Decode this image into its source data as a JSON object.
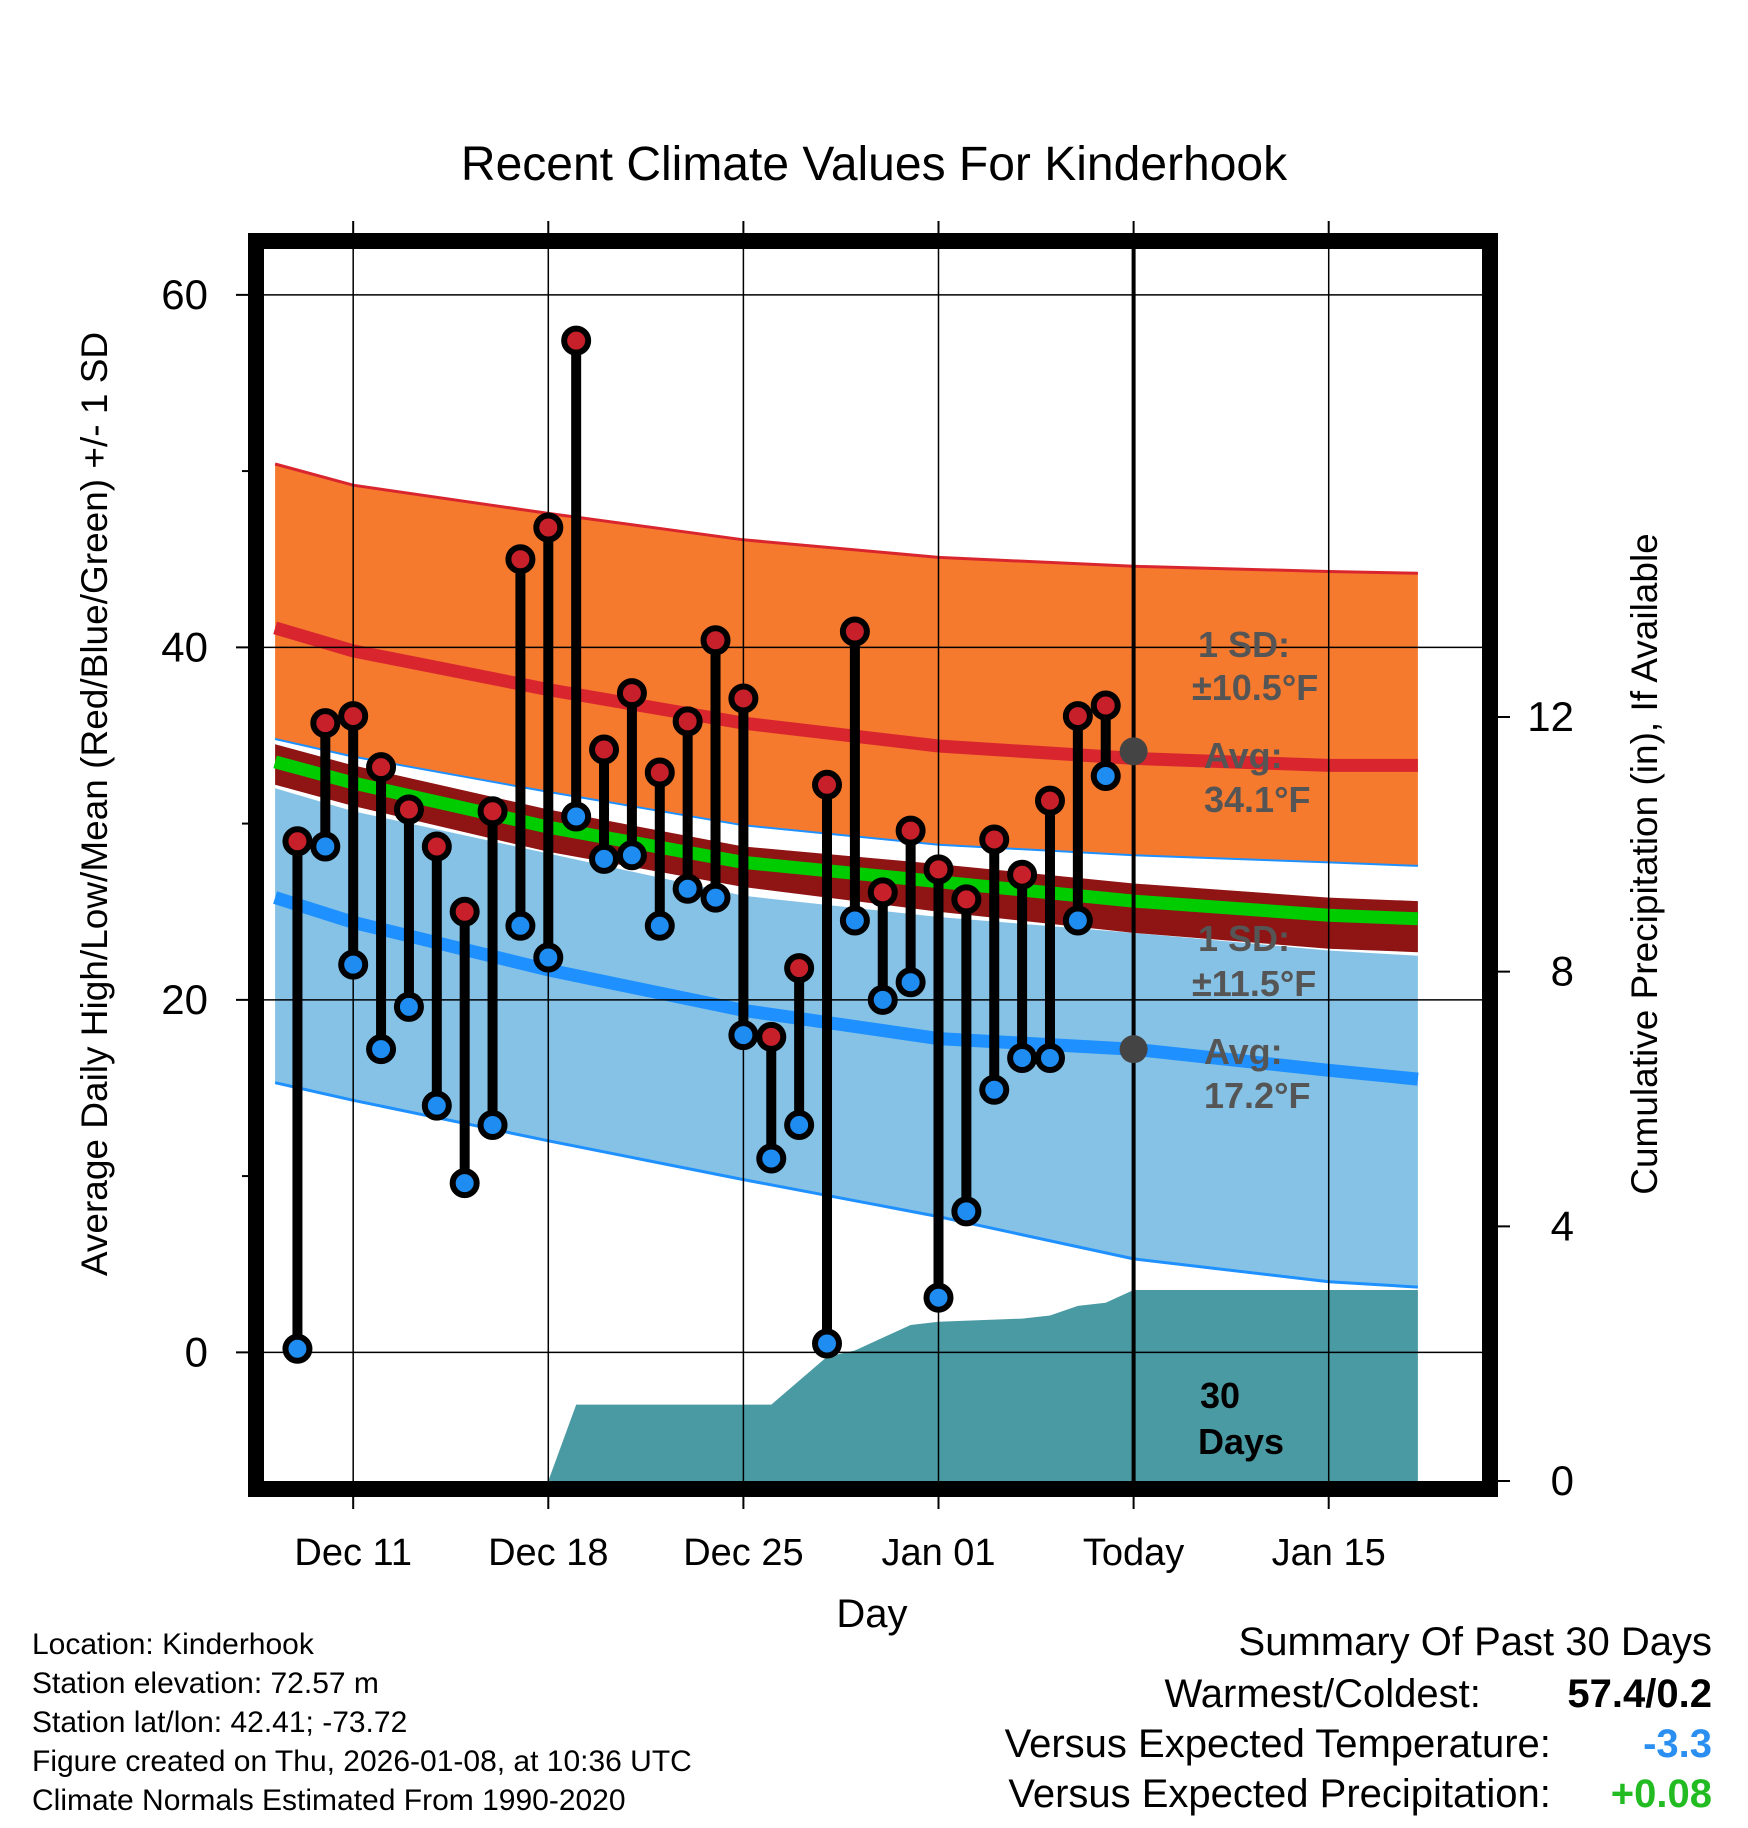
{
  "chart_data": {
    "type": "line",
    "title": "Recent Climate Values For Kinderhook",
    "xlabel": "Day",
    "ylabel": "Average Daily High/Low/Mean (Red/Blue/Green) +/- 1 SD",
    "y2label": "Cumulative Precipitation (in), If Available",
    "xlim": [
      -3.2,
      40.5
    ],
    "ylim": [
      -7.3,
      62.6
    ],
    "y2lim": [
      0,
      19.35
    ],
    "x_ticks": [
      {
        "x": 0,
        "label": "Dec 11"
      },
      {
        "x": 7,
        "label": "Dec 18"
      },
      {
        "x": 14,
        "label": "Dec 25"
      },
      {
        "x": 21,
        "label": "Jan 01"
      },
      {
        "x": 28,
        "label": "Today"
      },
      {
        "x": 35,
        "label": "Jan 15"
      }
    ],
    "y_ticks": [
      0,
      20,
      40,
      60
    ],
    "y2_ticks": [
      0,
      4,
      8,
      12
    ],
    "today_x": 28,
    "highs": [
      29,
      35.7,
      36.1,
      33.2,
      30.8,
      28.7,
      25,
      30.7,
      45,
      46.8,
      57.4,
      34.2,
      37.4,
      32.9,
      35.8,
      40.4,
      37.1,
      17.9,
      21.8,
      32.2,
      40.9,
      26.1,
      29.6,
      27.4,
      25.7,
      29.1,
      27.1,
      31.3,
      36.1,
      36.7
    ],
    "lows": [
      0.2,
      28.7,
      22,
      17.2,
      19.6,
      14,
      9.6,
      12.9,
      24.2,
      22.4,
      30.4,
      28,
      28.2,
      24.2,
      26.3,
      25.8,
      18,
      11,
      12.9,
      0.5,
      24.5,
      20,
      21,
      3.1,
      8,
      14.9,
      16.7,
      16.7,
      24.5,
      32.7
    ],
    "normal_high": {
      "x": [
        -2.8,
        0,
        7,
        14,
        21,
        28,
        35,
        38.2
      ],
      "values": [
        41.1,
        39.8,
        37.6,
        35.7,
        34.4,
        33.7,
        33.3,
        33.3
      ]
    },
    "normal_high_upper": {
      "x": [
        -2.8,
        0,
        7,
        14,
        21,
        28,
        35,
        38.2
      ],
      "values": [
        50.4,
        49.2,
        47.6,
        46.1,
        45.1,
        44.6,
        44.3,
        44.2
      ]
    },
    "normal_high_lower": {
      "x": [
        -2.8,
        0,
        7,
        14,
        21,
        28,
        35,
        38.2
      ],
      "values": [
        34.8,
        33.8,
        31.8,
        29.9,
        28.8,
        28.2,
        27.8,
        27.6
      ]
    },
    "normal_mean": {
      "x": [
        -2.8,
        0,
        7,
        14,
        21,
        28,
        35,
        38.2
      ],
      "values": [
        33.5,
        32.3,
        29.8,
        27.8,
        26.7,
        25.6,
        24.8,
        24.6
      ]
    },
    "normal_mean_upper": {
      "x": [
        -2.8,
        0,
        7,
        14,
        21,
        28,
        35,
        38.2
      ],
      "values": [
        34.5,
        33.3,
        30.8,
        28.7,
        27.7,
        26.6,
        25.8,
        25.6
      ]
    },
    "normal_mean_lower": {
      "x": [
        -2.8,
        0,
        7,
        14,
        21,
        28,
        35,
        38.2
      ],
      "values": [
        32.2,
        31,
        28.4,
        26.4,
        25,
        23.8,
        22.9,
        22.7
      ]
    },
    "normal_low": {
      "x": [
        -2.8,
        0,
        7,
        14,
        21,
        28,
        35,
        38.2
      ],
      "values": [
        25.8,
        24.4,
        21.7,
        19.4,
        17.8,
        17.2,
        16,
        15.5
      ]
    },
    "normal_low_upper": {
      "x": [
        -2.8,
        0,
        7,
        14,
        21,
        28,
        35,
        38.2
      ],
      "values": [
        32,
        30.7,
        28.3,
        25.9,
        24.7,
        23.8,
        22.8,
        22.5
      ]
    },
    "normal_low_lower": {
      "x": [
        -2.8,
        0,
        7,
        14,
        21,
        28,
        35,
        38.2
      ],
      "values": [
        15.3,
        14.3,
        12,
        9.8,
        7.7,
        5.3,
        4,
        3.7
      ]
    },
    "precip_cumulative": {
      "x": [
        7,
        8,
        14,
        15,
        17,
        18,
        20,
        21,
        24,
        25,
        26,
        27,
        28,
        38.2
      ],
      "values": [
        0,
        1.2,
        1.2,
        1.2,
        1.95,
        2.05,
        2.45,
        2.5,
        2.55,
        2.6,
        2.75,
        2.8,
        3.0,
        3.0
      ]
    },
    "high_sd_label": "1 SD:",
    "high_sd_value": "±10.5°F",
    "high_avg_label": "Avg:",
    "high_avg_value": "34.1°F",
    "high_avg_y": 34.1,
    "low_sd_label": "1 SD:",
    "low_sd_value": "±11.5°F",
    "low_avg_label": "Avg:",
    "low_avg_value": "17.2°F",
    "low_avg_y": 17.2,
    "days_label_number": "30",
    "days_label_word": "Days"
  },
  "colors": {
    "high_band": "#f57a2e",
    "high_line": "#d9262e",
    "mean_band": "#8f1414",
    "mean_line": "#00cc00",
    "low_band": "#85c2e6",
    "low_line": "#1e90ff",
    "precip": "#4a9aa4",
    "high_dot": "#c8202a",
    "low_dot": "#1e8cf0",
    "annotation": "#555555"
  },
  "meta": {
    "location": "Location: Kinderhook",
    "elevation": "Station elevation: 72.57 m",
    "latlon": "Station lat/lon: 42.41; -73.72",
    "created": "Figure created on Thu, 2026-01-08, at 10:36 UTC",
    "normals": "Climate Normals Estimated From 1990-2020"
  },
  "summary": {
    "title": "Summary Of Past 30 Days",
    "warmest_label": "Warmest/Coldest:",
    "warmest_value": "57.4/0.2",
    "temp_label": "Versus Expected Temperature:",
    "temp_value": "-3.3",
    "temp_color": "#2a8ff0",
    "precip_label": "Versus Expected Precipitation:",
    "precip_value": "+0.08",
    "precip_color": "#22bb22"
  }
}
